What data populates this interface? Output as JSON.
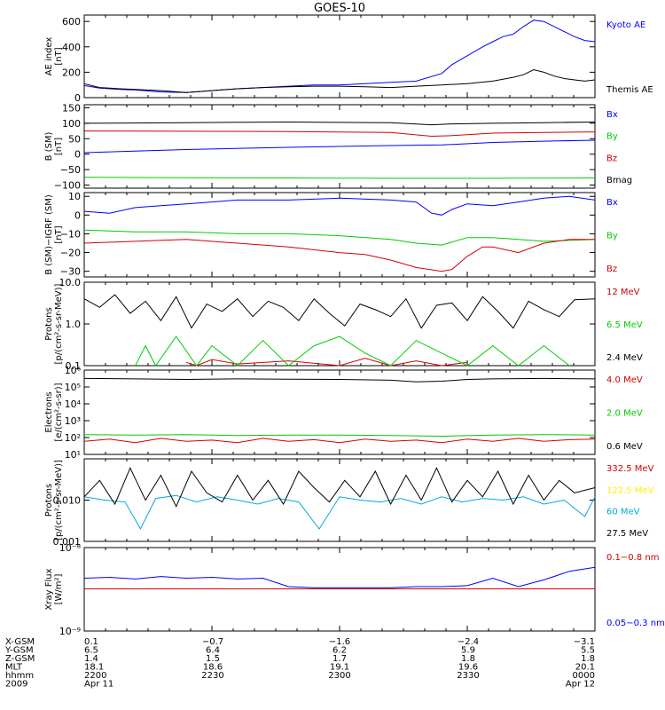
{
  "title": "GOES-10",
  "colors": {
    "black": "#000000",
    "blue": "#0000ff",
    "red": "#d40000",
    "green": "#00cc00",
    "yellow": "#ffee00",
    "cyan": "#00aadd"
  },
  "chart_data": [
    {
      "type": "line",
      "ylabel": [
        "AE index",
        "[nT]"
      ],
      "ylim": [
        0,
        650
      ],
      "yticks": [
        0,
        200,
        400,
        600
      ],
      "ytick_labels": [
        "0",
        "200",
        "400",
        "600"
      ],
      "series": [
        {
          "name": "Kyoto AE",
          "color": "#0000ff",
          "x": [
            0,
            3,
            7,
            10,
            15,
            20,
            25,
            30,
            35,
            40,
            45,
            50,
            55,
            60,
            65,
            70,
            72,
            75,
            78,
            80,
            82,
            84,
            86,
            88,
            90,
            92,
            94,
            96,
            98,
            100
          ],
          "y": [
            95,
            75,
            65,
            60,
            45,
            40,
            55,
            70,
            80,
            90,
            100,
            100,
            110,
            120,
            130,
            190,
            260,
            330,
            400,
            440,
            480,
            500,
            560,
            610,
            600,
            560,
            520,
            480,
            450,
            440
          ]
        },
        {
          "name": "Themis AE",
          "color": "#000000",
          "x": [
            0,
            3,
            7,
            10,
            15,
            20,
            25,
            30,
            35,
            40,
            45,
            50,
            55,
            60,
            65,
            70,
            75,
            80,
            84,
            86,
            88,
            90,
            92,
            94,
            96,
            98,
            100
          ],
          "y": [
            110,
            80,
            70,
            65,
            55,
            40,
            55,
            70,
            80,
            85,
            90,
            90,
            85,
            80,
            90,
            100,
            110,
            130,
            160,
            180,
            220,
            200,
            170,
            150,
            140,
            130,
            140
          ]
        }
      ]
    },
    {
      "type": "line",
      "ylabel": [
        "B (SM)",
        "[nT]"
      ],
      "ylim": [
        -110,
        160
      ],
      "yticks": [
        -100,
        -50,
        0,
        50,
        100,
        150
      ],
      "ytick_labels": [
        "−100",
        "−50",
        "0",
        "50",
        "100",
        "150"
      ],
      "series": [
        {
          "name": "Bx",
          "color": "#0000ff",
          "x": [
            0,
            20,
            40,
            60,
            70,
            80,
            90,
            100
          ],
          "y": [
            5,
            15,
            22,
            28,
            30,
            38,
            42,
            45
          ]
        },
        {
          "name": "By",
          "color": "#00cc00",
          "x": [
            0,
            20,
            40,
            60,
            80,
            100
          ],
          "y": [
            -75,
            -76,
            -77,
            -78,
            -78,
            -77
          ]
        },
        {
          "name": "Bz",
          "color": "#d40000",
          "x": [
            0,
            20,
            40,
            60,
            68,
            72,
            80,
            90,
            100
          ],
          "y": [
            75,
            74,
            73,
            70,
            58,
            60,
            68,
            70,
            72
          ]
        },
        {
          "name": "Bmag",
          "color": "#000000",
          "x": [
            0,
            20,
            40,
            60,
            68,
            72,
            80,
            90,
            100
          ],
          "y": [
            100,
            102,
            104,
            102,
            95,
            98,
            100,
            102,
            104
          ]
        }
      ]
    },
    {
      "type": "line",
      "ylabel": [
        "B (SM)−IGRF (SM)",
        "[nT]"
      ],
      "ylim": [
        -33,
        12
      ],
      "yticks": [
        -30,
        -20,
        -10,
        0,
        10
      ],
      "ytick_labels": [
        "−30",
        "−20",
        "−10",
        "0",
        "10"
      ],
      "series": [
        {
          "name": "Bx",
          "color": "#0000ff",
          "x": [
            0,
            5,
            10,
            15,
            20,
            30,
            40,
            50,
            60,
            65,
            68,
            70,
            72,
            75,
            80,
            85,
            90,
            95,
            100
          ],
          "y": [
            2,
            1,
            4,
            5,
            6,
            8,
            8,
            9,
            8,
            7,
            1,
            0,
            3,
            6,
            5,
            7,
            9,
            10,
            8
          ]
        },
        {
          "name": "By",
          "color": "#00cc00",
          "x": [
            0,
            10,
            20,
            30,
            40,
            50,
            60,
            65,
            70,
            75,
            80,
            85,
            90,
            100
          ],
          "y": [
            -8,
            -9,
            -9,
            -10,
            -10,
            -11,
            -13,
            -15,
            -16,
            -12,
            -12,
            -13,
            -14,
            -13
          ]
        },
        {
          "name": "Bz",
          "color": "#d40000",
          "x": [
            0,
            10,
            20,
            30,
            40,
            50,
            55,
            60,
            65,
            70,
            72,
            75,
            78,
            80,
            85,
            90,
            95,
            100
          ],
          "y": [
            -15,
            -14,
            -13,
            -15,
            -17,
            -20,
            -21,
            -24,
            -28,
            -30,
            -29,
            -22,
            -17,
            -17,
            -20,
            -15,
            -13,
            -13
          ]
        }
      ]
    },
    {
      "type": "line",
      "yscale": "log",
      "ylabel": [
        "Protons",
        "[p/(cm²-s-sr-MeV)]"
      ],
      "ylim": [
        0.1,
        10.0
      ],
      "yticks": [
        0.1,
        1.0,
        10.0
      ],
      "ytick_labels": [
        "0.1",
        "1.0",
        "10.0"
      ],
      "series": [
        {
          "name": "12 MeV",
          "color": "#d40000",
          "x": [
            20,
            22,
            25,
            30,
            40,
            50,
            55,
            60,
            65,
            70,
            75
          ],
          "y": [
            0.12,
            0.1,
            0.14,
            0.11,
            0.13,
            0.1,
            0.15,
            0.1,
            0.13,
            0.1,
            0.12
          ]
        },
        {
          "name": "6.5 MeV",
          "color": "#00cc00",
          "x": [
            10,
            12,
            14,
            18,
            22,
            25,
            30,
            35,
            40,
            45,
            50,
            55,
            60,
            65,
            70,
            75,
            80,
            85,
            90,
            95
          ],
          "y": [
            0.1,
            0.3,
            0.1,
            0.5,
            0.1,
            0.3,
            0.1,
            0.4,
            0.1,
            0.3,
            0.5,
            0.2,
            0.1,
            0.4,
            0.2,
            0.1,
            0.3,
            0.1,
            0.3,
            0.1
          ]
        },
        {
          "name": "2.4 MeV",
          "color": "#000000",
          "x": [
            0,
            3,
            6,
            9,
            12,
            15,
            18,
            21,
            24,
            27,
            30,
            33,
            36,
            39,
            42,
            45,
            48,
            51,
            54,
            57,
            60,
            63,
            66,
            69,
            72,
            75,
            78,
            81,
            84,
            87,
            90,
            93,
            96,
            100
          ],
          "y": [
            4,
            2.5,
            5,
            1.8,
            3.5,
            1.2,
            4.5,
            0.8,
            3,
            2,
            4,
            1.5,
            3.5,
            2.5,
            1.2,
            4,
            1.8,
            0.9,
            3,
            2.2,
            1.5,
            4,
            0.8,
            2.8,
            3.2,
            1.2,
            4.5,
            2,
            0.8,
            3.5,
            2.2,
            1.5,
            3.8,
            4
          ]
        }
      ]
    },
    {
      "type": "line",
      "yscale": "log",
      "ylabel": [
        "Electrons",
        "[e/(cm²-s-sr)]"
      ],
      "ylim": [
        10,
        1000000
      ],
      "yticks": [
        10,
        100,
        1000,
        10000,
        100000,
        1000000
      ],
      "ytick_labels": [
        "10¹",
        "10²",
        "10³",
        "10⁴",
        "10⁵",
        "10⁶"
      ],
      "series": [
        {
          "name": "4.0 MeV",
          "color": "#d40000",
          "x": [
            0,
            5,
            10,
            15,
            20,
            25,
            30,
            35,
            40,
            45,
            50,
            55,
            60,
            65,
            70,
            75,
            80,
            85,
            90,
            95,
            100
          ],
          "y": [
            60,
            80,
            50,
            90,
            60,
            70,
            50,
            90,
            60,
            75,
            50,
            80,
            60,
            70,
            50,
            80,
            60,
            90,
            60,
            75,
            80
          ]
        },
        {
          "name": "2.0 MeV",
          "color": "#00cc00",
          "x": [
            0,
            10,
            20,
            30,
            40,
            50,
            60,
            70,
            80,
            90,
            100
          ],
          "y": [
            150,
            140,
            150,
            130,
            140,
            140,
            130,
            120,
            140,
            150,
            140
          ]
        },
        {
          "name": "0.6 MeV",
          "color": "#000000",
          "x": [
            0,
            10,
            20,
            30,
            40,
            50,
            60,
            65,
            70,
            75,
            80,
            90,
            100
          ],
          "y": [
            320000,
            300000,
            280000,
            300000,
            290000,
            280000,
            250000,
            200000,
            220000,
            280000,
            300000,
            320000,
            300000
          ]
        }
      ]
    },
    {
      "type": "line",
      "yscale": "log",
      "ylabel": [
        "Protons",
        "[p/(cm²-s-sr-MeV)]"
      ],
      "ylim": [
        0.001,
        0.1
      ],
      "yticks": [
        0.001,
        0.01
      ],
      "ytick_labels": [
        "0.001",
        "0.010"
      ],
      "series": [
        {
          "name": "332.5 MeV",
          "color": "#d40000",
          "x": [],
          "y": []
        },
        {
          "name": "122.5 MeV",
          "color": "#ffee00",
          "x": [],
          "y": []
        },
        {
          "name": "60 MeV",
          "color": "#00aadd",
          "x": [
            0,
            4,
            8,
            11,
            14,
            18,
            22,
            26,
            30,
            34,
            38,
            42,
            46,
            50,
            54,
            58,
            62,
            66,
            70,
            74,
            78,
            82,
            86,
            90,
            94,
            98,
            100
          ],
          "y": [
            0.012,
            0.01,
            0.009,
            0.002,
            0.011,
            0.013,
            0.009,
            0.012,
            0.01,
            0.008,
            0.011,
            0.009,
            0.002,
            0.012,
            0.01,
            0.009,
            0.011,
            0.008,
            0.012,
            0.009,
            0.011,
            0.01,
            0.012,
            0.008,
            0.01,
            0.004,
            0.012
          ]
        },
        {
          "name": "27.5 MeV",
          "color": "#000000",
          "x": [
            0,
            3,
            6,
            9,
            12,
            15,
            18,
            21,
            24,
            27,
            30,
            33,
            36,
            39,
            42,
            45,
            48,
            51,
            54,
            57,
            60,
            63,
            66,
            69,
            72,
            75,
            78,
            81,
            84,
            87,
            90,
            93,
            96,
            100
          ],
          "y": [
            0.012,
            0.03,
            0.008,
            0.06,
            0.01,
            0.04,
            0.007,
            0.05,
            0.015,
            0.009,
            0.04,
            0.01,
            0.03,
            0.008,
            0.05,
            0.02,
            0.009,
            0.03,
            0.012,
            0.05,
            0.008,
            0.04,
            0.01,
            0.06,
            0.009,
            0.03,
            0.012,
            0.05,
            0.008,
            0.04,
            0.01,
            0.03,
            0.015,
            0.02
          ]
        }
      ]
    },
    {
      "type": "line",
      "yscale": "log",
      "ylabel": [
        "Xray Flux",
        "[W/m²]"
      ],
      "ylim": [
        1e-09,
        1e-08
      ],
      "yticks": [
        1e-09,
        1e-08
      ],
      "ytick_labels": [
        "10⁻⁹",
        "10⁻⁸"
      ],
      "series": [
        {
          "name": "0.1−0.8 nm",
          "color": "#d40000",
          "x": [
            0,
            100
          ],
          "y": [
            3.2e-09,
            3.2e-09
          ]
        },
        {
          "name": "0.05−0.3 nm",
          "color": "#0000ff",
          "x": [
            0,
            5,
            10,
            15,
            20,
            25,
            30,
            35,
            40,
            45,
            50,
            55,
            60,
            65,
            70,
            75,
            80,
            85,
            90,
            95,
            100
          ],
          "y": [
            4.3e-09,
            4.4e-09,
            4.2e-09,
            4.5e-09,
            4.3e-09,
            4.4e-09,
            4.2e-09,
            4.3e-09,
            3.4e-09,
            3.3e-09,
            3.3e-09,
            3.3e-09,
            3.3e-09,
            3.4e-09,
            3.4e-09,
            3.5e-09,
            4.3e-09,
            3.4e-09,
            4.1e-09,
            5.2e-09,
            5.8e-09
          ]
        }
      ]
    }
  ],
  "orbit_table": {
    "row_labels": [
      "X-GSM",
      "Y-GSM",
      "Z-GSM",
      "MLT",
      "hhmm",
      "2009"
    ],
    "columns": [
      [
        "0.1",
        "6.5",
        "1.4",
        "18.1",
        "2200",
        "Apr 11"
      ],
      [
        "−0.7",
        "6.4",
        "1.5",
        "18.6",
        "2230",
        ""
      ],
      [
        "−1.6",
        "6.2",
        "1.7",
        "19.1",
        "2300",
        ""
      ],
      [
        "−2.4",
        "5.9",
        "1.8",
        "19.6",
        "2330",
        ""
      ],
      [
        "−3.1",
        "5.5",
        "1.8",
        "20.1",
        "0000",
        "Apr 12"
      ]
    ]
  }
}
